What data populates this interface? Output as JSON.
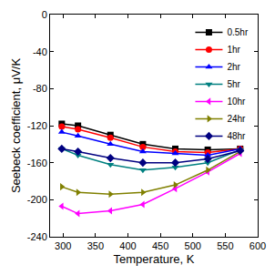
{
  "chart_data": {
    "type": "line",
    "x_label": "Temperature, K",
    "y_label": "Seebeck coefficient, μV/K",
    "x": [
      298,
      323,
      373,
      423,
      473,
      523,
      573
    ],
    "series": [
      {
        "name": "0.5hr",
        "color": "#000000",
        "marker": "square",
        "values": [
          -118,
          -120,
          -130,
          -140,
          -145,
          -146,
          -145
        ]
      },
      {
        "name": "1hr",
        "color": "#ff0000",
        "marker": "circle",
        "values": [
          -121,
          -124,
          -133,
          -143,
          -148,
          -149,
          -145
        ]
      },
      {
        "name": "2hr",
        "color": "#0000ff",
        "marker": "triangle-up",
        "values": [
          -127,
          -131,
          -140,
          -148,
          -150,
          -152,
          -145
        ]
      },
      {
        "name": "5hr",
        "color": "#008080",
        "marker": "triangle-down",
        "values": [
          -145,
          -152,
          -162,
          -168,
          -165,
          -160,
          -146
        ]
      },
      {
        "name": "10hr",
        "color": "#ff00ff",
        "marker": "triangle-left",
        "values": [
          -207,
          -215,
          -212,
          -205,
          -188,
          -170,
          -150
        ]
      },
      {
        "name": "24hr",
        "color": "#808000",
        "marker": "triangle-right",
        "values": [
          -186,
          -192,
          -194,
          -192,
          -184,
          -168,
          -148
        ]
      },
      {
        "name": "48hr",
        "color": "#000080",
        "marker": "diamond",
        "values": [
          -145,
          -148,
          -155,
          -160,
          -160,
          -156,
          -147
        ]
      }
    ],
    "xlim": [
      280,
      600
    ],
    "xticks": [
      300,
      350,
      400,
      450,
      500,
      550,
      600
    ],
    "ylim": [
      -240,
      0
    ],
    "yticks": [
      -240,
      -200,
      -160,
      -120,
      -80,
      -40,
      0
    ],
    "legend": "upper right",
    "grid": false
  }
}
